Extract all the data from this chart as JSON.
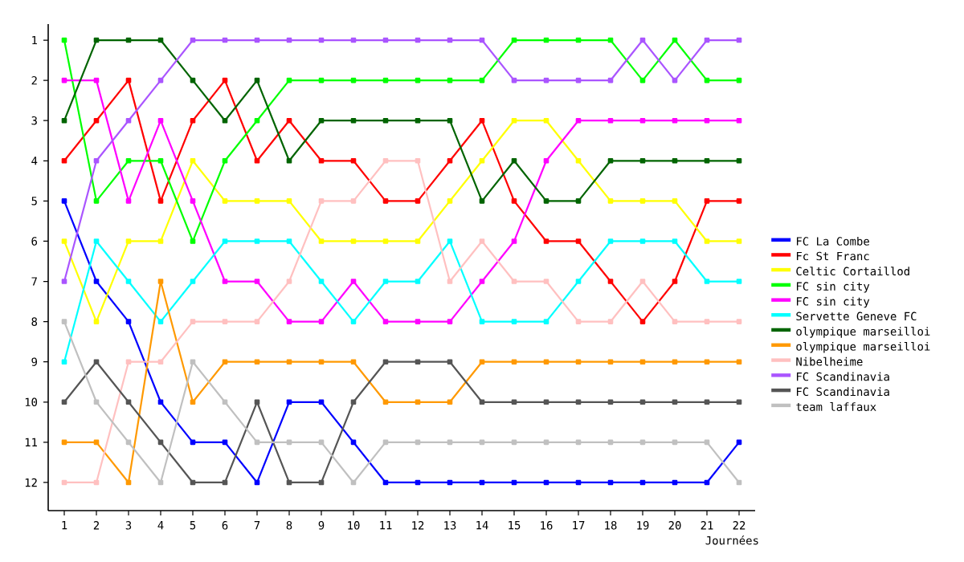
{
  "chart_data": {
    "type": "line",
    "xlabel": "Journées",
    "xlim": [
      0.5,
      22.5
    ],
    "ylim": [
      12.7,
      0.6
    ],
    "xticks": [
      1,
      2,
      3,
      4,
      5,
      6,
      7,
      8,
      9,
      10,
      11,
      12,
      13,
      14,
      15,
      16,
      17,
      18,
      19,
      20,
      21,
      22
    ],
    "yticks": [
      1,
      2,
      3,
      4,
      5,
      6,
      7,
      8,
      9,
      10,
      11,
      12
    ],
    "x": [
      1,
      2,
      3,
      4,
      5,
      6,
      7,
      8,
      9,
      10,
      11,
      12,
      13,
      14,
      15,
      16,
      17,
      18,
      19,
      20,
      21,
      22
    ],
    "marker": "square",
    "legend": "right",
    "grid": false,
    "series": [
      {
        "name": "FC La Combe",
        "color": "#0000ff",
        "values": [
          5,
          7,
          8,
          10,
          11,
          11,
          12,
          10,
          10,
          11,
          12,
          12,
          12,
          12,
          12,
          12,
          12,
          12,
          12,
          12,
          12,
          11
        ]
      },
      {
        "name": "Fc St Franc",
        "color": "#ff0000",
        "values": [
          4,
          3,
          2,
          5,
          3,
          2,
          4,
          3,
          4,
          4,
          5,
          5,
          4,
          3,
          5,
          6,
          6,
          7,
          8,
          7,
          5,
          5
        ]
      },
      {
        "name": "Celtic Cortaillod",
        "color": "#ffff00",
        "values": [
          6,
          8,
          6,
          6,
          4,
          5,
          5,
          5,
          6,
          6,
          6,
          6,
          5,
          4,
          3,
          3,
          4,
          5,
          5,
          5,
          6,
          6
        ]
      },
      {
        "name": "FC sin city",
        "color": "#00ff00",
        "values": [
          1,
          5,
          4,
          4,
          6,
          4,
          3,
          2,
          2,
          2,
          2,
          2,
          2,
          2,
          1,
          1,
          1,
          1,
          2,
          1,
          2,
          2
        ]
      },
      {
        "name": "FC sin city",
        "color": "#ff00ff",
        "values": [
          2,
          2,
          5,
          3,
          5,
          7,
          7,
          8,
          8,
          7,
          8,
          8,
          8,
          7,
          6,
          4,
          3,
          3,
          3,
          3,
          3,
          3
        ]
      },
      {
        "name": "Servette Geneve FC",
        "color": "#00ffff",
        "values": [
          9,
          6,
          7,
          8,
          7,
          6,
          6,
          6,
          7,
          8,
          7,
          7,
          6,
          8,
          8,
          8,
          7,
          6,
          6,
          6,
          7,
          7
        ]
      },
      {
        "name": "olympique marseilloi",
        "color": "#006400",
        "values": [
          3,
          1,
          1,
          1,
          2,
          3,
          2,
          4,
          3,
          3,
          3,
          3,
          3,
          5,
          4,
          5,
          5,
          4,
          4,
          4,
          4,
          4
        ]
      },
      {
        "name": "olympique marseilloi",
        "color": "#ff9900",
        "values": [
          11,
          11,
          12,
          7,
          10,
          9,
          9,
          9,
          9,
          9,
          10,
          10,
          10,
          9,
          9,
          9,
          9,
          9,
          9,
          9,
          9,
          9
        ]
      },
      {
        "name": "Nibelheime",
        "color": "#ffc0c0",
        "values": [
          12,
          12,
          9,
          9,
          8,
          8,
          8,
          7,
          5,
          5,
          4,
          4,
          7,
          6,
          7,
          7,
          8,
          8,
          7,
          8,
          8,
          8
        ]
      },
      {
        "name": "FC Scandinavia",
        "color": "#aa55ff",
        "values": [
          7,
          4,
          3,
          2,
          1,
          1,
          1,
          1,
          1,
          1,
          1,
          1,
          1,
          1,
          2,
          2,
          2,
          2,
          1,
          2,
          1,
          1
        ]
      },
      {
        "name": "FC Scandinavia",
        "color": "#555555",
        "values": [
          10,
          9,
          10,
          11,
          12,
          12,
          10,
          12,
          12,
          10,
          9,
          9,
          9,
          10,
          10,
          10,
          10,
          10,
          10,
          10,
          10,
          10
        ]
      },
      {
        "name": "team laffaux",
        "color": "#c0c0c0",
        "values": [
          8,
          10,
          11,
          12,
          9,
          10,
          11,
          11,
          11,
          12,
          11,
          11,
          11,
          11,
          11,
          11,
          11,
          11,
          11,
          11,
          11,
          12
        ]
      }
    ]
  }
}
